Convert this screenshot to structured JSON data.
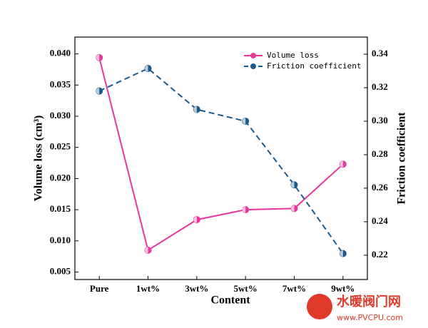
{
  "chart_data": {
    "type": "line",
    "xlabel": "Content",
    "ylabel": "Volume loss (cm³)",
    "y2label": "Friction coefficient",
    "categories": [
      "Pure",
      "1wt%",
      "3wt%",
      "5wt%",
      "7wt%",
      "9wt%"
    ],
    "series": [
      {
        "name": "Volume loss",
        "color": "#e8379a",
        "dash": false,
        "values": [
          0.0394,
          0.0085,
          0.0134,
          0.015,
          0.0152,
          0.0223
        ]
      },
      {
        "name": "Friction coefficient",
        "color": "#1c5a8c",
        "dash": true,
        "axis": "y2",
        "values": [
          0.318,
          0.3315,
          0.307,
          0.3,
          0.262,
          0.221
        ]
      }
    ],
    "ylim": [
      0.0038,
      0.0427
    ],
    "yticks": [
      {
        "value": 0.005,
        "label": "0.005"
      },
      {
        "value": 0.01,
        "label": "0.010"
      },
      {
        "value": 0.015,
        "label": "0.015"
      },
      {
        "value": 0.02,
        "label": "0.020"
      },
      {
        "value": 0.025,
        "label": "0.025"
      },
      {
        "value": 0.03,
        "label": "0.030"
      },
      {
        "value": 0.035,
        "label": "0.035"
      },
      {
        "value": 0.04,
        "label": "0.040"
      }
    ],
    "y2lim": [
      0.2055,
      0.3502
    ],
    "y2ticks": [
      {
        "value": 0.22,
        "label": "0.22"
      },
      {
        "value": 0.24,
        "label": "0.24"
      },
      {
        "value": 0.26,
        "label": "0.26"
      },
      {
        "value": 0.28,
        "label": "0.28"
      },
      {
        "value": 0.3,
        "label": "0.30"
      },
      {
        "value": 0.32,
        "label": "0.32"
      },
      {
        "value": 0.34,
        "label": "0.34"
      }
    ],
    "legend": "upper right"
  },
  "watermark": {
    "name": "水暖阀门网",
    "url": "www.PVCPU.com"
  }
}
